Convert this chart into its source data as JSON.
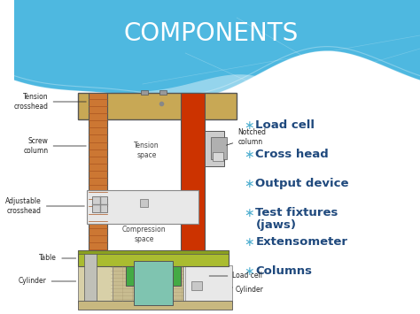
{
  "title": "COMPONENTS",
  "title_color": "#FFFFFF",
  "title_fontsize": 20,
  "bullet_items": [
    "Load cell",
    "Cross head",
    "Output device",
    "Test fixtures\n(jaws)",
    "Extensometer",
    "Columns"
  ],
  "bullet_color": "#1F497D",
  "bullet_star_color": "#4AACCE",
  "bullet_fontsize": 9.5,
  "diagram_colors": {
    "top_crosshead": "#C8A855",
    "left_column_orange": "#CC7733",
    "right_column_red": "#CC3300",
    "table_yellow": "#AABC30",
    "adjustable_crosshead": "#E8E8E8",
    "cylinder_teal": "#7FC4B0",
    "cylinder_housing": "#C8BC90",
    "load_cell_green": "#44AA44",
    "notched_box": "#D0D0D0",
    "frame_line": "#555555"
  }
}
